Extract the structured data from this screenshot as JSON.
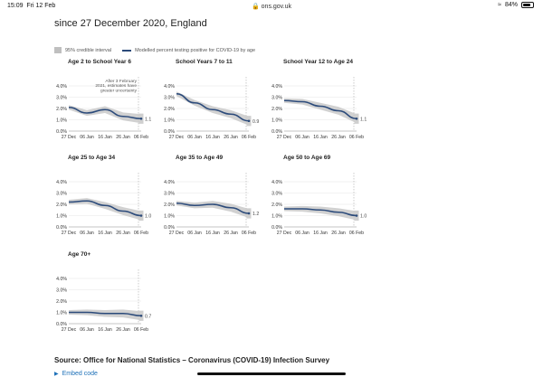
{
  "statusbar": {
    "time": "15:09",
    "day": "Fri 12 Feb",
    "url": "ons.gov.uk",
    "battery": "84%"
  },
  "page": {
    "heading_partial": "since 27 December 2020, England",
    "source": "Source: Office for National Statistics – Coronavirus (COVID-19) Infection Survey",
    "embed_label": "Embed code"
  },
  "legend": {
    "ci_label": "95% credible interval",
    "line_label": "Modelled percent testing positive for COVID-19 by age"
  },
  "colors": {
    "line": "#2b4a7a",
    "band": "#c9c9c9",
    "axis": "#888888"
  },
  "chart_data": [
    {
      "type": "line",
      "title": "Age 2 to School Year 6",
      "x": [
        "27 Dec",
        "06 Jan",
        "16 Jan",
        "26 Jan",
        "06 Feb"
      ],
      "ylim": [
        0,
        4
      ],
      "yticks": [
        "0.0%",
        "1.0%",
        "2.0%",
        "3.0%",
        "4.0%"
      ],
      "series": [
        {
          "values": [
            2.1,
            1.6,
            1.9,
            1.3,
            1.1
          ]
        }
      ],
      "end_label": "1.1",
      "annotation": "After 3 February 2021, estimates have greater uncertainty"
    },
    {
      "type": "line",
      "title": "School Years 7 to 11",
      "x": [
        "27 Dec",
        "06 Jan",
        "16 Jan",
        "26 Jan",
        "06 Feb"
      ],
      "ylim": [
        0,
        4
      ],
      "yticks": [
        "0.0%",
        "1.0%",
        "2.0%",
        "3.0%",
        "4.0%"
      ],
      "series": [
        {
          "values": [
            3.3,
            2.5,
            1.9,
            1.5,
            0.9
          ]
        }
      ],
      "end_label": "0.9"
    },
    {
      "type": "line",
      "title": "School Year 12 to Age 24",
      "x": [
        "27 Dec",
        "06 Jan",
        "16 Jan",
        "26 Jan",
        "06 Feb"
      ],
      "ylim": [
        0,
        4
      ],
      "yticks": [
        "0.0%",
        "1.0%",
        "2.0%",
        "3.0%",
        "4.0%"
      ],
      "series": [
        {
          "values": [
            2.7,
            2.6,
            2.2,
            1.8,
            1.1
          ]
        }
      ],
      "end_label": "1.1"
    },
    {
      "type": "line",
      "title": "Age 25 to Age 34",
      "x": [
        "27 Dec",
        "06 Jan",
        "16 Jan",
        "26 Jan",
        "06 Feb"
      ],
      "ylim": [
        0,
        4
      ],
      "yticks": [
        "0.0%",
        "1.0%",
        "2.0%",
        "3.0%",
        "4.0%"
      ],
      "series": [
        {
          "values": [
            2.2,
            2.3,
            1.9,
            1.4,
            1.0
          ]
        }
      ],
      "end_label": "1.0"
    },
    {
      "type": "line",
      "title": "Age 35 to Age 49",
      "x": [
        "27 Dec",
        "06 Jan",
        "16 Jan",
        "26 Jan",
        "06 Feb"
      ],
      "ylim": [
        0,
        4
      ],
      "yticks": [
        "0.0%",
        "1.0%",
        "2.0%",
        "3.0%",
        "4.0%"
      ],
      "series": [
        {
          "values": [
            2.1,
            1.9,
            2.0,
            1.7,
            1.2
          ]
        }
      ],
      "end_label": "1.2"
    },
    {
      "type": "line",
      "title": "Age 50 to Age 69",
      "x": [
        "27 Dec",
        "06 Jan",
        "16 Jan",
        "26 Jan",
        "06 Feb"
      ],
      "ylim": [
        0,
        4
      ],
      "yticks": [
        "0.0%",
        "1.0%",
        "2.0%",
        "3.0%",
        "4.0%"
      ],
      "series": [
        {
          "values": [
            1.6,
            1.6,
            1.5,
            1.3,
            1.0
          ]
        }
      ],
      "end_label": "1.0"
    },
    {
      "type": "line",
      "title": "Age 70+",
      "x": [
        "27 Dec",
        "06 Jan",
        "16 Jan",
        "26 Jan",
        "06 Feb"
      ],
      "ylim": [
        0,
        4
      ],
      "yticks": [
        "0.0%",
        "1.0%",
        "2.0%",
        "3.0%",
        "4.0%"
      ],
      "series": [
        {
          "values": [
            1.0,
            1.0,
            0.9,
            0.9,
            0.7
          ]
        }
      ],
      "end_label": "0.7"
    }
  ]
}
